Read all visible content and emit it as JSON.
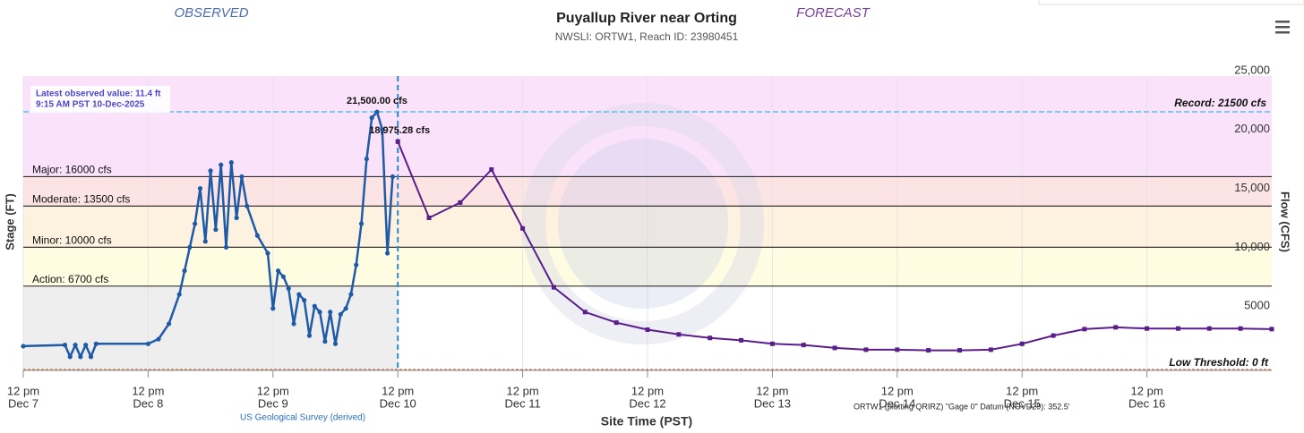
{
  "chart_data": {
    "type": "line",
    "title": "Puyallup River near Orting",
    "subtitle": "NWSLI: ORTW1, Reach ID: 23980451",
    "observed_label": "OBSERVED",
    "forecast_label": "FORECAST",
    "y_label": "Stage (FT)",
    "y2_label": "Flow (CFS)",
    "x_label": "Site Time (PST)",
    "source_note": "US Geological Survey (derived)",
    "datum_note": "ORTW1 (plotting QRIRZ) \"Gage 0\" Datum (NGVD29): 352.5'",
    "latest_note": [
      "Latest observed value: 11.4 ft",
      "9:15 AM PST 10-Dec-2025"
    ],
    "forecast_start": "2025-12-10T12:00",
    "xlim": [
      "2025-12-07T12:00",
      "2025-12-17T12:00"
    ],
    "xticks": [
      {
        "value": "2025-12-07T12:00",
        "label": "12 pm",
        "date": "Dec 7"
      },
      {
        "value": "2025-12-08T12:00",
        "label": "12 pm",
        "date": "Dec 8"
      },
      {
        "value": "2025-12-09T12:00",
        "label": "12 pm",
        "date": "Dec 9"
      },
      {
        "value": "2025-12-10T12:00",
        "label": "12 pm",
        "date": "Dec 10"
      },
      {
        "value": "2025-12-11T12:00",
        "label": "12 pm",
        "date": "Dec 11"
      },
      {
        "value": "2025-12-12T12:00",
        "label": "12 pm",
        "date": "Dec 12"
      },
      {
        "value": "2025-12-13T12:00",
        "label": "12 pm",
        "date": "Dec 13"
      },
      {
        "value": "2025-12-14T12:00",
        "label": "12 pm",
        "date": "Dec 14"
      },
      {
        "value": "2025-12-15T12:00",
        "label": "12 pm",
        "date": "Dec 15"
      },
      {
        "value": "2025-12-16T12:00",
        "label": "12 pm",
        "date": "Dec 16"
      }
    ],
    "ylim": [
      0,
      25000
    ],
    "yticks": [
      5000,
      {
        "value": 10000,
        "label": "10,000"
      },
      {
        "value": 15000,
        "label": "15,000"
      },
      {
        "value": 20000,
        "label": "20,000"
      },
      {
        "value": 25000,
        "label": "25,000"
      }
    ],
    "thresholds": [
      {
        "label": "Action: 6700 cfs",
        "value": 6700,
        "band": "#fefde2"
      },
      {
        "label": "Minor: 10000 cfs",
        "value": 10000,
        "band": "#fdf2e0"
      },
      {
        "label": "Moderate: 13500 cfs",
        "value": 13500,
        "band": "#fde4e4"
      },
      {
        "label": "Major: 16000 cfs",
        "value": 16000,
        "band": "#fbe2fb"
      }
    ],
    "below_action_band": "#eeeeee",
    "record": {
      "label": "Record: 21500 cfs",
      "value": 21500,
      "color": "#5bc0e6"
    },
    "low_threshold": {
      "label": "Low Threshold: 0 ft",
      "value": 0,
      "color": "#c0693a"
    },
    "series": [
      {
        "name": "Observed",
        "color": "#1f5aa6",
        "marker": "circle",
        "x": [
          "2025-12-07T12:00",
          "2025-12-07T20:00",
          "2025-12-07T21:00",
          "2025-12-07T22:00",
          "2025-12-07T23:00",
          "2025-12-08T00:00",
          "2025-12-08T01:00",
          "2025-12-08T02:00",
          "2025-12-08T12:00",
          "2025-12-08T14:00",
          "2025-12-08T16:00",
          "2025-12-08T18:00",
          "2025-12-08T19:00",
          "2025-12-08T20:00",
          "2025-12-08T21:00",
          "2025-12-08T22:00",
          "2025-12-08T23:00",
          "2025-12-09T00:00",
          "2025-12-09T01:00",
          "2025-12-09T02:00",
          "2025-12-09T03:00",
          "2025-12-09T04:00",
          "2025-12-09T05:00",
          "2025-12-09T06:00",
          "2025-12-09T07:00",
          "2025-12-09T09:00",
          "2025-12-09T11:00",
          "2025-12-09T12:00",
          "2025-12-09T13:00",
          "2025-12-09T14:00",
          "2025-12-09T15:00",
          "2025-12-09T16:00",
          "2025-12-09T17:00",
          "2025-12-09T18:00",
          "2025-12-09T19:00",
          "2025-12-09T20:00",
          "2025-12-09T21:00",
          "2025-12-09T22:00",
          "2025-12-09T23:00",
          "2025-12-10T00:00",
          "2025-12-10T01:00",
          "2025-12-10T02:00",
          "2025-12-10T03:00",
          "2025-12-10T04:00",
          "2025-12-10T05:00",
          "2025-12-10T06:00",
          "2025-12-10T07:00",
          "2025-12-10T08:00",
          "2025-12-10T09:00",
          "2025-12-10T10:00",
          "2025-12-10T11:00"
        ],
        "values": [
          1600,
          1700,
          700,
          1700,
          700,
          1700,
          700,
          1800,
          1800,
          2200,
          3500,
          6000,
          8000,
          10000,
          12000,
          15000,
          10500,
          16500,
          11500,
          17000,
          10000,
          17200,
          12500,
          16000,
          13500,
          11000,
          9500,
          4800,
          8000,
          7500,
          6500,
          3500,
          6000,
          5500,
          2500,
          5000,
          4500,
          2000,
          4500,
          1800,
          4300,
          4800,
          6000,
          8500,
          12000,
          17500,
          21000,
          21500,
          20000,
          9500,
          16000
        ]
      },
      {
        "name": "Forecast",
        "color": "#5a1e8c",
        "marker": "square",
        "x": [
          "2025-12-10T12:00",
          "2025-12-10T18:00",
          "2025-12-11T00:00",
          "2025-12-11T06:00",
          "2025-12-11T12:00",
          "2025-12-11T18:00",
          "2025-12-12T00:00",
          "2025-12-12T06:00",
          "2025-12-12T12:00",
          "2025-12-12T18:00",
          "2025-12-13T00:00",
          "2025-12-13T06:00",
          "2025-12-13T12:00",
          "2025-12-13T18:00",
          "2025-12-14T00:00",
          "2025-12-14T06:00",
          "2025-12-14T12:00",
          "2025-12-14T18:00",
          "2025-12-15T00:00",
          "2025-12-15T06:00",
          "2025-12-15T12:00",
          "2025-12-15T18:00",
          "2025-12-16T00:00",
          "2025-12-16T06:00",
          "2025-12-16T12:00",
          "2025-12-16T18:00",
          "2025-12-17T00:00",
          "2025-12-17T06:00",
          "2025-12-17T12:00"
        ],
        "values": [
          18975.28,
          12500,
          13800,
          16600,
          11600,
          6600,
          4500,
          3600,
          3000,
          2600,
          2300,
          2100,
          1800,
          1700,
          1450,
          1300,
          1300,
          1250,
          1250,
          1300,
          1800,
          2500,
          3050,
          3200,
          3100,
          3100,
          3100,
          3100,
          3050
        ]
      }
    ],
    "annotations": [
      {
        "text": "21,500.00 cfs",
        "series": 0,
        "index": 47
      },
      {
        "text": "18,975.28 cfs",
        "series": 1,
        "index": 0
      }
    ]
  }
}
